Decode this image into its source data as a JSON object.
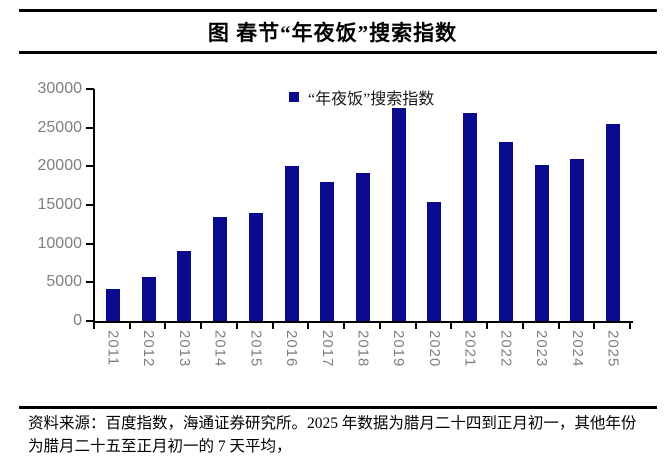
{
  "figure": {
    "title": "图 春节“年夜饭”搜索指数",
    "source_note": "资料来源：百度指数，海通证券研究所。2025 年数据为腊月二十四到正月初一，其他年份为腊月二十五至正月初一的 7 天平均，"
  },
  "chart_data": {
    "type": "bar",
    "title": "图 春节“年夜饭”搜索指数",
    "legend_label": "“年夜饭”搜索指数",
    "legend_position": "top-center",
    "categories": [
      "2011",
      "2012",
      "2013",
      "2014",
      "2015",
      "2016",
      "2017",
      "2018",
      "2019",
      "2020",
      "2021",
      "2022",
      "2023",
      "2024",
      "2025"
    ],
    "values": [
      4100,
      5700,
      9000,
      13400,
      14000,
      20100,
      18000,
      19100,
      27500,
      15400,
      26900,
      23200,
      20200,
      20900,
      25500
    ],
    "xlabel": "",
    "ylabel": "",
    "ylim": [
      0,
      30000
    ],
    "yticks": [
      0,
      5000,
      10000,
      15000,
      20000,
      25000,
      30000
    ],
    "grid": false,
    "colors": {
      "bar": "#0a0a8f",
      "axis": "#000000",
      "tick_label": "#7f7f7f",
      "text": "#000000"
    }
  }
}
